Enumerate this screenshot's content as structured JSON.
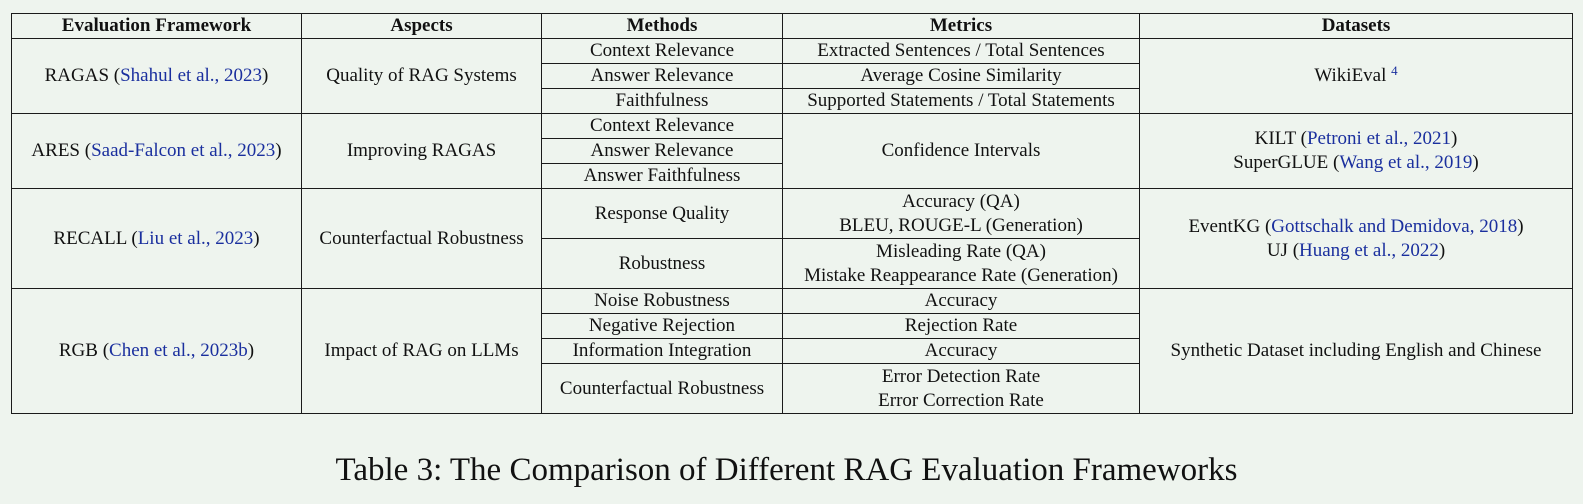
{
  "columns": [
    "Evaluation Framework",
    "Aspects",
    "Methods",
    "Metrics",
    "Datasets"
  ],
  "rows": [
    {
      "framework": {
        "name": "RAGAS",
        "open": " (",
        "cite": "Shahul et al., 2023",
        "close": ")"
      },
      "aspect": "Quality of RAG Systems",
      "methods": [
        "Context Relevance",
        "Answer Relevance",
        "Faithfulness"
      ],
      "metrics": [
        "Extracted Sentences / Total Sentences",
        "Average Cosine Similarity",
        "Supported Statements / Total Statements"
      ],
      "dataset": {
        "name": "WikiEval ",
        "footnote": "4"
      }
    },
    {
      "framework": {
        "name": "ARES",
        "open": " (",
        "cite": "Saad-Falcon et al., 2023",
        "close": ")"
      },
      "aspect": "Improving RAGAS",
      "methods": [
        "Context Relevance",
        "Answer Relevance",
        "Answer Faithfulness"
      ],
      "metric": "Confidence Intervals",
      "datasets": [
        {
          "name": "KILT",
          "open": " (",
          "cite": "Petroni et al., 2021",
          "close": ")"
        },
        {
          "name": "SuperGLUE",
          "open": " (",
          "cite": "Wang et al., 2019",
          "close": ")"
        }
      ]
    },
    {
      "framework": {
        "name": "RECALL",
        "open": " (",
        "cite": "Liu et al., 2023",
        "close": ")"
      },
      "aspect": "Counterfactual Robustness",
      "methods": [
        "Response Quality",
        "Robustness"
      ],
      "metrics": [
        [
          "Accuracy (QA)",
          "BLEU, ROUGE-L (Generation)"
        ],
        [
          "Misleading Rate (QA)",
          "Mistake Reappearance Rate (Generation)"
        ]
      ],
      "datasets": [
        {
          "name": "EventKG",
          "open": " (",
          "cite": "Gottschalk and Demidova, 2018",
          "close": ")"
        },
        {
          "name": "UJ",
          "open": " (",
          "cite": "Huang et al., 2022",
          "close": ")"
        }
      ]
    },
    {
      "framework": {
        "name": "RGB",
        "open": " (",
        "cite": "Chen et al., 2023b",
        "close": ")"
      },
      "aspect": "Impact of RAG on LLMs",
      "methods": [
        "Noise Robustness",
        "Negative Rejection",
        "Information Integration",
        "Counterfactual Robustness"
      ],
      "metrics": [
        "Accuracy",
        "Rejection Rate",
        "Accuracy",
        [
          "Error Detection Rate",
          "Error Correction Rate"
        ]
      ],
      "dataset": "Synthetic Dataset including English and Chinese"
    }
  ],
  "caption": "Table 3: The Comparison of Different RAG Evaluation Frameworks"
}
